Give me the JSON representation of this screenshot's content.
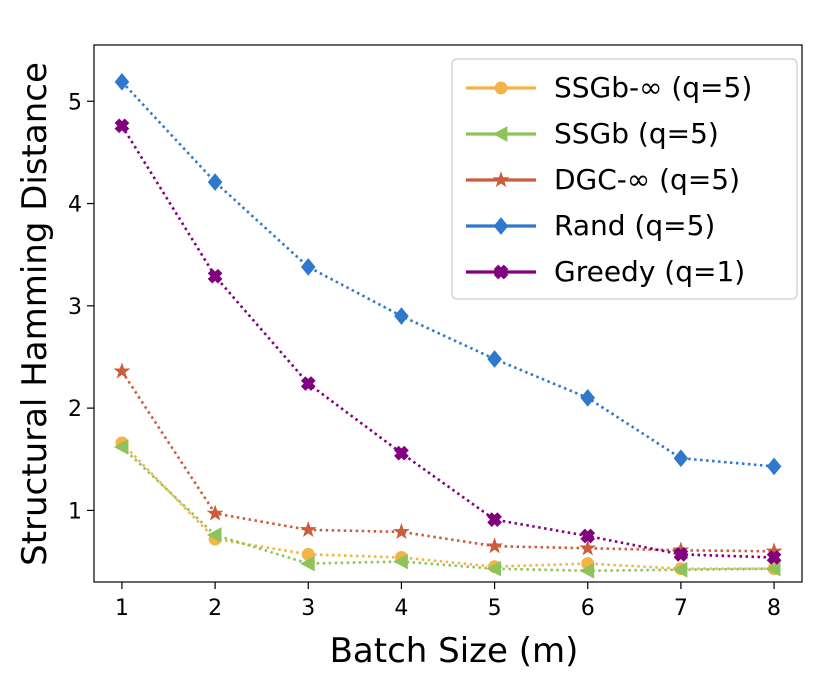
{
  "chart_data": {
    "type": "line",
    "title": "",
    "xlabel": "Batch Size (m)",
    "ylabel": "Structural Hamming Distance",
    "x": [
      1,
      2,
      3,
      4,
      5,
      6,
      7,
      8
    ],
    "xlim": [
      0.7,
      8.3
    ],
    "ylim": [
      0.3,
      5.55
    ],
    "xticks": [
      1,
      2,
      3,
      4,
      5,
      6,
      7,
      8
    ],
    "yticks": [
      1,
      2,
      3,
      4,
      5
    ],
    "grid": false,
    "legend_position": "top-right",
    "series": [
      {
        "name": "SSGb-∞ (q=5)",
        "color": "#f2b447",
        "marker": "circle",
        "values": [
          1.66,
          0.72,
          0.57,
          0.54,
          0.45,
          0.48,
          0.43,
          0.43
        ]
      },
      {
        "name": "SSGb (q=5)",
        "color": "#8cc35a",
        "marker": "triangle-left",
        "values": [
          1.62,
          0.76,
          0.48,
          0.5,
          0.43,
          0.41,
          0.42,
          0.43
        ]
      },
      {
        "name": "DGC-∞ (q=5)",
        "color": "#cc5c3c",
        "marker": "star",
        "values": [
          2.36,
          0.97,
          0.81,
          0.79,
          0.65,
          0.63,
          0.61,
          0.6
        ]
      },
      {
        "name": "Rand (q=5)",
        "color": "#2f78cc",
        "marker": "diamond",
        "values": [
          5.19,
          4.21,
          3.38,
          2.9,
          2.48,
          2.1,
          1.51,
          1.43
        ]
      },
      {
        "name": "Greedy (q=1)",
        "color": "#800080",
        "marker": "x-filled",
        "values": [
          4.76,
          3.29,
          2.24,
          1.56,
          0.91,
          0.75,
          0.57,
          0.54
        ]
      }
    ]
  }
}
